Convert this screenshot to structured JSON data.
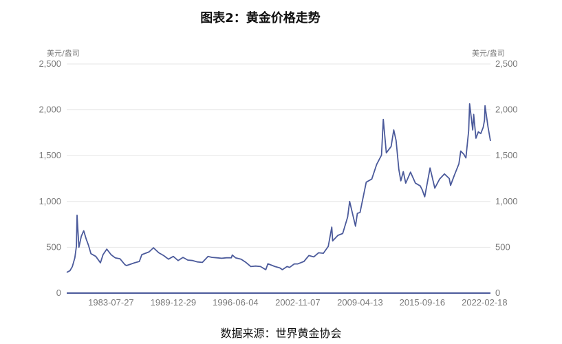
{
  "title": "图表2：黄金价格走势",
  "source": "数据来源：世界黄金协会",
  "chart_data": {
    "type": "line",
    "title": "图表2：黄金价格走势",
    "ylabel_left": "美元/盎司",
    "ylabel_right": "美元/盎司",
    "ylim": [
      0,
      2500
    ],
    "y_ticks": [
      "0",
      "500",
      "1,000",
      "1,500",
      "2,000",
      "2,500"
    ],
    "x_ticks": [
      "1983-07-27",
      "1989-12-29",
      "1996-06-04",
      "2002-11-07",
      "2009-04-13",
      "2015-09-16",
      "2022-02-18"
    ],
    "x_range": [
      "1978-12-29",
      "2022-09-30"
    ],
    "grid": true,
    "color": "#4b5a9b",
    "series": [
      {
        "x": [
          "1978-12-29",
          "1979-04-30",
          "1979-07-31",
          "1979-10-31",
          "1979-12-31",
          "1980-01-21",
          "1980-03-31",
          "1980-06-30",
          "1980-09-30",
          "1980-12-31",
          "1981-03-31",
          "1981-06-30",
          "1981-12-31",
          "1982-06-21",
          "1982-09-30",
          "1983-02-15",
          "1983-07-27",
          "1983-12-30",
          "1984-06-29",
          "1984-12-31",
          "1985-03-01",
          "1985-12-31",
          "1986-06-30",
          "1986-09-30",
          "1987-06-30",
          "1987-12-14",
          "1988-06-30",
          "1988-12-30",
          "1989-06-30",
          "1989-12-29",
          "1990-06-29",
          "1990-12-31",
          "1991-06-28",
          "1991-12-31",
          "1992-06-30",
          "1992-12-31",
          "1993-08-02",
          "1993-12-31",
          "1994-06-30",
          "1994-12-30",
          "1995-06-30",
          "1995-12-29",
          "1996-02-02",
          "1996-06-04",
          "1996-12-31",
          "1997-06-30",
          "1997-12-31",
          "1998-06-30",
          "1998-12-31",
          "1999-07-20",
          "1999-10-05",
          "2000-06-30",
          "2000-12-29",
          "2001-04-02",
          "2001-09-28",
          "2001-12-31",
          "2002-06-28",
          "2002-11-07",
          "2003-06-30",
          "2003-12-31",
          "2004-06-30",
          "2004-12-31",
          "2005-06-30",
          "2005-12-30",
          "2006-05-12",
          "2006-06-14",
          "2006-12-29",
          "2007-06-29",
          "2007-12-31",
          "2008-03-17",
          "2008-10-24",
          "2008-12-31",
          "2009-04-13",
          "2009-12-02",
          "2010-06-30",
          "2010-12-31",
          "2011-06-30",
          "2011-09-06",
          "2011-12-30",
          "2012-06-29",
          "2012-10-04",
          "2012-12-31",
          "2013-04-15",
          "2013-06-28",
          "2013-09-30",
          "2013-12-31",
          "2014-06-30",
          "2014-12-31",
          "2015-06-30",
          "2015-09-16",
          "2015-12-17",
          "2016-07-06",
          "2016-12-30",
          "2017-06-30",
          "2017-12-29",
          "2018-06-29",
          "2018-08-16",
          "2018-12-31",
          "2019-06-28",
          "2019-09-04",
          "2019-12-31",
          "2020-03-19",
          "2020-06-30",
          "2020-08-06",
          "2020-11-30",
          "2021-01-05",
          "2021-03-31",
          "2021-06-30",
          "2021-09-30",
          "2021-12-31",
          "2022-02-18",
          "2022-03-08",
          "2022-06-30",
          "2022-09-30"
        ],
        "values": [
          226,
          245,
          290,
          385,
          512,
          850,
          500,
          620,
          680,
          590,
          520,
          430,
          400,
          330,
          420,
          480,
          420,
          385,
          375,
          310,
          300,
          330,
          345,
          420,
          450,
          495,
          440,
          410,
          370,
          400,
          355,
          390,
          360,
          355,
          340,
          335,
          400,
          390,
          385,
          380,
          385,
          385,
          415,
          385,
          370,
          335,
          290,
          295,
          290,
          255,
          320,
          290,
          275,
          255,
          290,
          280,
          318,
          318,
          345,
          410,
          395,
          440,
          435,
          510,
          720,
          570,
          630,
          650,
          830,
          1000,
          730,
          870,
          880,
          1210,
          1245,
          1405,
          1505,
          1895,
          1530,
          1600,
          1780,
          1665,
          1350,
          1225,
          1325,
          1200,
          1320,
          1200,
          1170,
          1125,
          1050,
          1365,
          1145,
          1245,
          1300,
          1250,
          1175,
          1280,
          1410,
          1550,
          1515,
          1475,
          1770,
          2065,
          1780,
          1950,
          1690,
          1760,
          1740,
          1810,
          1890,
          2045,
          1810,
          1660
        ]
      }
    ]
  }
}
